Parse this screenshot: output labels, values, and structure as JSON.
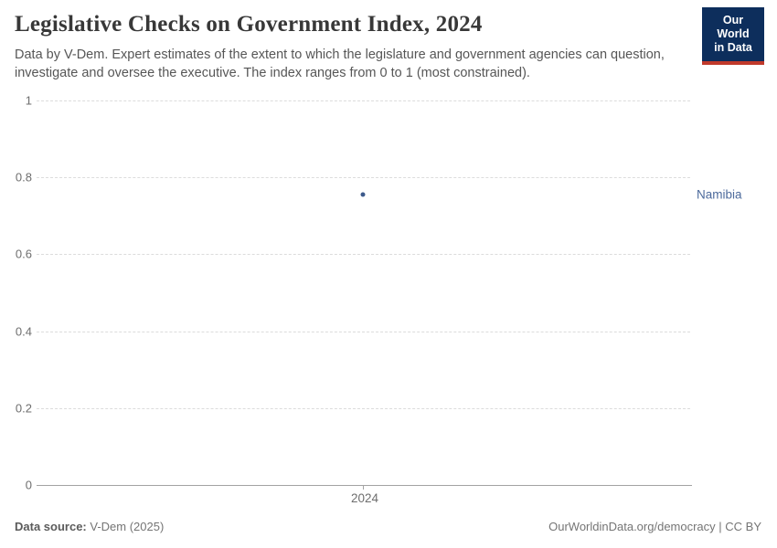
{
  "header": {
    "title": "Legislative Checks on Government Index, 2024",
    "subtitle": "Data by V-Dem. Expert estimates of the extent to which the legislature and government agencies can question, investigate and oversee the executive. The index ranges from 0 to 1 (most constrained).",
    "logo": {
      "line1": "Our World",
      "line2": "in Data",
      "bg_color": "#0d2e5c",
      "accent_color": "#c0392b"
    }
  },
  "chart_data": {
    "type": "scatter",
    "title": "Legislative Checks on Government Index, 2024",
    "x": [
      2024
    ],
    "xtick_labels": [
      "2024"
    ],
    "series": [
      {
        "name": "Namibia",
        "values": [
          0.755
        ],
        "point_color": "#3d5a8c",
        "label_color": "#4c6a9c"
      }
    ],
    "xlabel": "",
    "ylabel": "",
    "ylim": [
      0,
      1
    ],
    "yticks": [
      0,
      0.2,
      0.4,
      0.6,
      0.8,
      1
    ],
    "ytick_labels": [
      "0",
      "0.2",
      "0.4",
      "0.6",
      "0.8",
      "1"
    ],
    "grid": "horizontal-dashed",
    "legend": "entity-label-right"
  },
  "footer": {
    "source_label": "Data source:",
    "source_value": "V-Dem (2025)",
    "link": "OurWorldinData.org/democracy | CC BY"
  }
}
